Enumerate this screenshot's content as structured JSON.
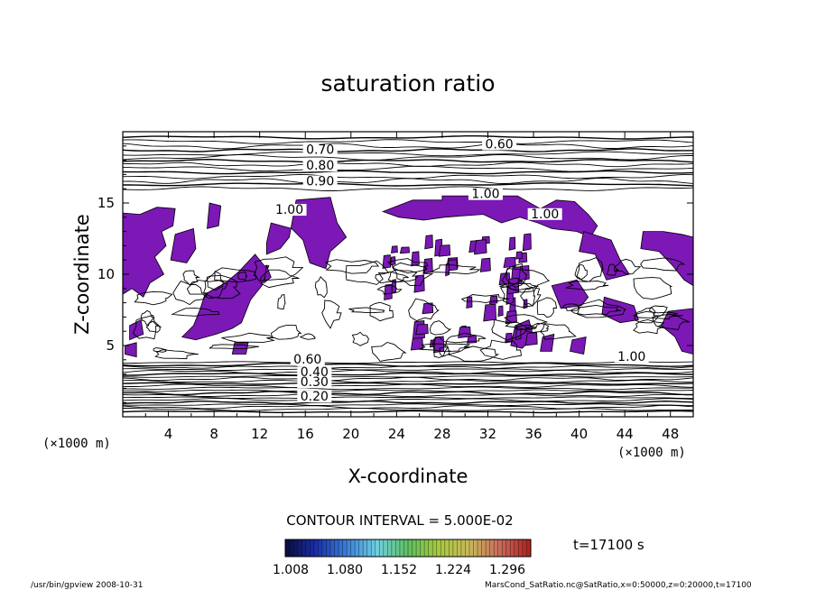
{
  "chart_data": {
    "type": "heatmap",
    "title": "saturation ratio",
    "xlabel": "X-coordinate",
    "ylabel": "Z-coordinate",
    "x_unit": "(×1000 m)",
    "y_unit": "(×1000 m)",
    "xlim": [
      0,
      50
    ],
    "ylim": [
      0,
      20
    ],
    "x_ticks": [
      4,
      8,
      12,
      16,
      20,
      24,
      28,
      32,
      36,
      40,
      44,
      48
    ],
    "y_ticks": [
      5,
      10,
      15
    ],
    "contour_interval_label": "CONTOUR INTERVAL = 5.000E-02",
    "time_label": "t=17100 s",
    "colorbar": {
      "ticks": [
        "1.008",
        "1.080",
        "1.152",
        "1.224",
        "1.296"
      ],
      "min": 1.008,
      "max": 1.296,
      "colors": [
        "#0b0b3a",
        "#1b2fa6",
        "#3a7fd9",
        "#6fd0e0",
        "#5fbf5f",
        "#a7c93f",
        "#c9b85a",
        "#c96a5a",
        "#b02020"
      ]
    },
    "fill_color": "#7b18b6",
    "contour_labels": [
      {
        "text": "0.60",
        "x": 33.0,
        "z": 18.9
      },
      {
        "text": "0.70",
        "x": 17.3,
        "z": 18.5
      },
      {
        "text": "0.80",
        "x": 17.3,
        "z": 17.4
      },
      {
        "text": "0.90",
        "x": 17.3,
        "z": 16.3
      },
      {
        "text": "1.00",
        "x": 31.8,
        "z": 15.4
      },
      {
        "text": "1.00",
        "x": 14.6,
        "z": 14.3
      },
      {
        "text": "1.00",
        "x": 37.0,
        "z": 14.0
      },
      {
        "text": "0.60",
        "x": 16.2,
        "z": 3.8
      },
      {
        "text": "0.40",
        "x": 16.8,
        "z": 2.9
      },
      {
        "text": "0.30",
        "x": 16.8,
        "z": 2.2
      },
      {
        "text": "0.20",
        "x": 16.8,
        "z": 1.2
      },
      {
        "text": "1.00",
        "x": 44.6,
        "z": 4.0
      }
    ]
  },
  "footer": {
    "left": "/usr/bin/gpview  2008-10-31",
    "right": "MarsCond_SatRatio.nc@SatRatio,x=0:50000,z=0:20000,t=17100"
  }
}
